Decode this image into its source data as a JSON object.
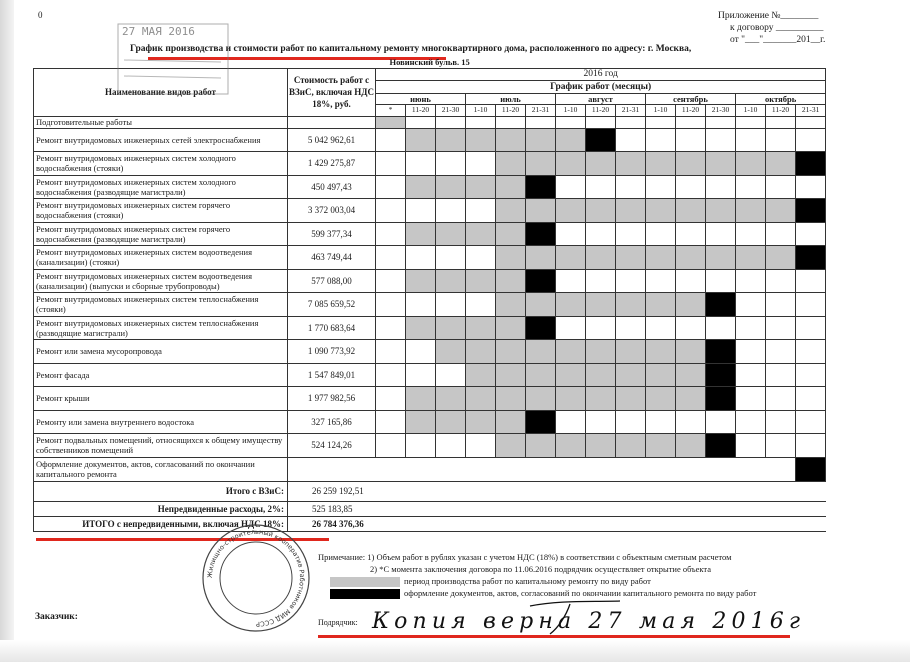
{
  "page_number": "0",
  "appendix": {
    "line1": "Приложение №________",
    "line2": "к договору __________",
    "line3": "от \"___\"_______201__г."
  },
  "title": "График производства и стоимости работ по капитальному ремонту многоквартирного дома, расположенного по адресу: г. Москва,",
  "address": "Новинский бульв. 15",
  "header": {
    "name_col": "Наименование видов работ",
    "cost_col": "Стоимость работ с ВЗиС, включая НДС 18%, руб.",
    "year": "2016 год",
    "schedule": "График работ (месяцы)",
    "months": [
      "июнь",
      "июль",
      "август",
      "сентябрь",
      "октябрь"
    ],
    "periods": [
      "*",
      "11-20",
      "21-30",
      "1-10",
      "11-20",
      "21-31",
      "1-10",
      "11-20",
      "21-31",
      "1-10",
      "11-20",
      "21-30",
      "1-10",
      "11-20",
      "21-31"
    ]
  },
  "legend_codes": {
    "0": "пусто",
    "1": "период производства работ",
    "2": "оформление документов"
  },
  "colors": {
    "period": "#c6c6c6",
    "documents": "#000000",
    "underline": "#e0281e"
  },
  "rows": [
    {
      "name": "Подготовительные работы",
      "cost": "",
      "cells": [
        1,
        0,
        0,
        0,
        0,
        0,
        0,
        0,
        0,
        0,
        0,
        0,
        0,
        0,
        0
      ]
    },
    {
      "name": "Ремонт внутридомовых инженерных сетей электроснабжения",
      "cost": "5 042 962,61",
      "cells": [
        0,
        1,
        1,
        1,
        1,
        1,
        1,
        2,
        0,
        0,
        0,
        0,
        0,
        0,
        0
      ]
    },
    {
      "name": "Ремонт внутридомовых инженерных систем холодного водоснабжения (стояки)",
      "cost": "1 429 275,87",
      "cells": [
        0,
        0,
        0,
        0,
        1,
        1,
        1,
        1,
        1,
        1,
        1,
        1,
        1,
        1,
        2
      ]
    },
    {
      "name": "Ремонт внутридомовых инженерных систем холодного водоснабжения (разводящие магистрали)",
      "cost": "450 497,43",
      "cells": [
        0,
        1,
        1,
        1,
        1,
        2,
        0,
        0,
        0,
        0,
        0,
        0,
        0,
        0,
        0
      ]
    },
    {
      "name": "Ремонт внутридомовых инженерных систем горячего водоснабжения (стояки)",
      "cost": "3 372 003,04",
      "cells": [
        0,
        0,
        0,
        0,
        1,
        1,
        1,
        1,
        1,
        1,
        1,
        1,
        1,
        1,
        2
      ]
    },
    {
      "name": "Ремонт внутридомовых инженерных систем горячего водоснабжения (разводящие магистрали)",
      "cost": "599 377,34",
      "cells": [
        0,
        1,
        1,
        1,
        1,
        2,
        0,
        0,
        0,
        0,
        0,
        0,
        0,
        0,
        0
      ]
    },
    {
      "name": "Ремонт внутридомовых инженерных систем водоотведения (канализации) (стояки)",
      "cost": "463 749,44",
      "cells": [
        0,
        0,
        0,
        0,
        1,
        1,
        1,
        1,
        1,
        1,
        1,
        1,
        1,
        1,
        2
      ]
    },
    {
      "name": "Ремонт внутридомовых инженерных систем водоотведения (канализации) (выпуски и сборные трубопроводы)",
      "cost": "577 088,00",
      "cells": [
        0,
        1,
        1,
        1,
        1,
        2,
        0,
        0,
        0,
        0,
        0,
        0,
        0,
        0,
        0
      ]
    },
    {
      "name": "Ремонт внутридомовых инженерных систем теплоснабжения (стояки)",
      "cost": "7 085 659,52",
      "cells": [
        0,
        0,
        0,
        0,
        1,
        1,
        1,
        1,
        1,
        1,
        1,
        2,
        0,
        0,
        0
      ]
    },
    {
      "name": "Ремонт внутридомовых инженерных систем теплоснабжения (разводящие магистрали)",
      "cost": "1 770 683,64",
      "cells": [
        0,
        1,
        1,
        1,
        1,
        2,
        0,
        0,
        0,
        0,
        0,
        0,
        0,
        0,
        0
      ]
    },
    {
      "name": "Ремонт или замена мусоропровода",
      "cost": "1 090 773,92",
      "cells": [
        0,
        0,
        1,
        1,
        1,
        1,
        1,
        1,
        1,
        1,
        1,
        2,
        0,
        0,
        0
      ]
    },
    {
      "name": "Ремонт фасада",
      "cost": "1 547 849,01",
      "cells": [
        0,
        0,
        0,
        1,
        1,
        1,
        1,
        1,
        1,
        1,
        1,
        2,
        0,
        0,
        0
      ]
    },
    {
      "name": "Ремонт крыши",
      "cost": "1 977 982,56",
      "cells": [
        0,
        1,
        1,
        1,
        1,
        1,
        1,
        1,
        1,
        1,
        1,
        2,
        0,
        0,
        0
      ]
    },
    {
      "name": "Ремонту или замена внутреннего водостока",
      "cost": "327 165,86",
      "cells": [
        0,
        1,
        1,
        1,
        1,
        2,
        0,
        0,
        0,
        0,
        0,
        0,
        0,
        0,
        0
      ]
    },
    {
      "name": "Ремонт подвальных помещений, относящихся к общему имуществу собственников помещений",
      "cost": "524 124,26",
      "cells": [
        0,
        0,
        0,
        0,
        1,
        1,
        1,
        1,
        1,
        1,
        1,
        2,
        0,
        0,
        0
      ]
    }
  ],
  "final_row": {
    "name": "Оформление документов, актов, согласований по окончании капитального ремонта"
  },
  "totals": {
    "subtotal_label": "Итого с ВЗиС:",
    "subtotal_value": "26 259 192,51",
    "contingency_label": "Непредвиденные расходы, 2%:",
    "contingency_value": "525 183,85",
    "total_label": "ИТОГО с непредвиденными, включая НДС 18%:",
    "total_value": "26 784 376,36"
  },
  "notes": {
    "label": "Примечание:",
    "n1": "1) Объем работ в рублях указан с учетом НДС (18%) в соответствии с объектным сметным расчетом",
    "n2": "2) *С момента заключения договора по 11.06.2016 подрядчик осуществляет открытие объекта",
    "legend_period": "период производства работ по капитальному ремонту по виду работ",
    "legend_docs": "оформление документов, актов, согласований по окончании капитального ремонта по виду работ"
  },
  "signatures": {
    "customer": "Заказчик:",
    "contractor": "Подрядчик:",
    "handwritten": "Копия верна 27 мая 2016г"
  },
  "stamps": {
    "date_stamp": "27 МАЯ 2016",
    "round_stamp": "Жилищно-строительный кооператив Работников МИД СССР"
  }
}
